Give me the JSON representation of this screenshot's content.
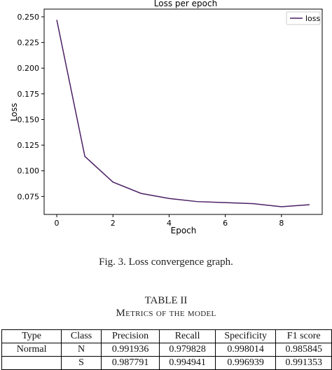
{
  "chart_data": {
    "type": "line",
    "title": "Loss per epoch",
    "xlabel": "Epoch",
    "ylabel": "Loss",
    "xlim": [
      -0.45,
      9.45
    ],
    "ylim": [
      0.0575,
      0.2575
    ],
    "xticks": [
      0,
      2,
      4,
      6,
      8
    ],
    "yticks": [
      0.075,
      0.1,
      0.125,
      0.15,
      0.175,
      0.2,
      0.225,
      0.25
    ],
    "ytick_labels": [
      "0.075",
      "0.100",
      "0.125",
      "0.150",
      "0.175",
      "0.200",
      "0.225",
      "0.250"
    ],
    "legend": "top-right",
    "grid": false,
    "series": [
      {
        "name": "loss",
        "color": "#4b1f64",
        "x": [
          0,
          1,
          2,
          3,
          4,
          5,
          6,
          7,
          8,
          9
        ],
        "y": [
          0.247,
          0.114,
          0.089,
          0.078,
          0.073,
          0.07,
          0.069,
          0.068,
          0.065,
          0.067
        ]
      }
    ]
  },
  "caption": "Fig. 3.  Loss convergence graph.",
  "table": {
    "title": "TABLE II",
    "subtitle": "Metrics of the model",
    "headers": [
      "Type",
      "Class",
      "Precision",
      "Recall",
      "Specificity",
      "F1 score"
    ],
    "rows": [
      [
        "Normal",
        "N",
        "0.991936",
        "0.979828",
        "0.998014",
        "0.985845"
      ],
      [
        "",
        "S",
        "0.987791",
        "0.994941",
        "0.996939",
        "0.991353"
      ]
    ]
  }
}
